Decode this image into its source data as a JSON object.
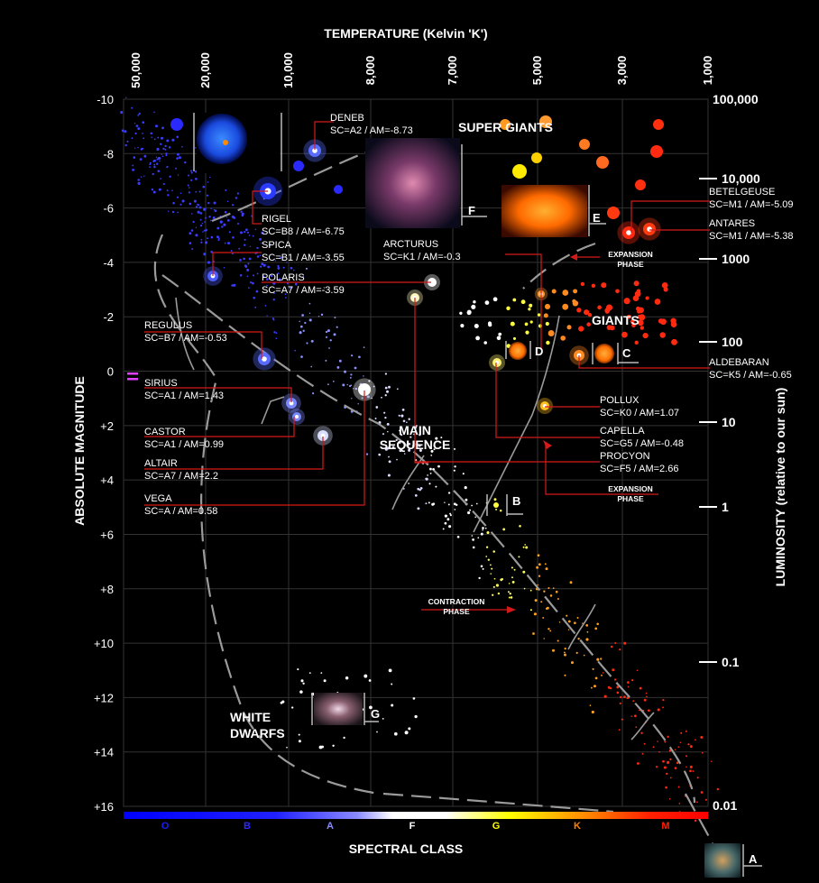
{
  "chart_data": {
    "type": "scatter",
    "title": "TEMPERATURE (Kelvin 'K')",
    "xlabel": "SPECTRAL CLASS",
    "ylabel": "ABSOLUTE MAGNITUDE",
    "y2label": "LUMINOSITY (relative to our sun)",
    "ylim": [
      -10,
      16
    ],
    "temperature_ticks": [
      "50,000",
      "20,000",
      "10,000",
      "8,000",
      "7,000",
      "5,000",
      "3,000",
      "1,000"
    ],
    "magnitude_ticks": [
      "-10",
      "-8",
      "-6",
      "-4",
      "-2",
      "0",
      "+2",
      "+4",
      "+6",
      "+8",
      "+10",
      "+12",
      "+14",
      "+16"
    ],
    "luminosity_ticks": [
      "100,000",
      "10,000",
      "1000",
      "100",
      "10",
      "1",
      "0.1",
      "0.01"
    ],
    "spectral_classes": [
      "O",
      "B",
      "A",
      "F",
      "G",
      "K",
      "M"
    ],
    "regions": {
      "super_giants": "SUPER GIANTS",
      "giants": "GIANTS",
      "main_sequence_1": "MAIN",
      "main_sequence_2": "SEQUENCE",
      "white_dwarfs_1": "WHITE",
      "white_dwarfs_2": "DWARFS"
    },
    "phases": {
      "expansion_1": "EXPANSION",
      "expansion_2": "PHASE",
      "contraction_1": "CONTRACTION",
      "contraction_2": "PHASE"
    },
    "markers": [
      "A",
      "B",
      "C",
      "D",
      "E",
      "F",
      "G"
    ],
    "stars": [
      {
        "name": "DENEB",
        "info": "SC=A2 / AM=-8.73",
        "color": "#5a6cff"
      },
      {
        "name": "RIGEL",
        "info": "SC=B8 / AM=-6.75",
        "color": "#2b3cff"
      },
      {
        "name": "SPICA",
        "info": "SC=B1 / AM=-3.55",
        "color": "#4c5cff"
      },
      {
        "name": "POLARIS",
        "info": "SC=A7 / AM=-3.59",
        "color": "#fff6c0"
      },
      {
        "name": "ARCTURUS",
        "info": "SC=K1 / AM=-0.3",
        "color": "#ff9a30"
      },
      {
        "name": "REGULUS",
        "info": "SC=B7 / AM=-0.53",
        "color": "#5a6cff"
      },
      {
        "name": "SIRIUS",
        "info": "SC=A1 / AM=1.43",
        "color": "#7a88ff"
      },
      {
        "name": "CASTOR",
        "info": "SC=A1 / AM=0.99",
        "color": "#7a88ff"
      },
      {
        "name": "ALTAIR",
        "info": "SC=A7 / AM=2.2",
        "color": "#d8dcff"
      },
      {
        "name": "VEGA",
        "info": "SC=A / AM=0.58",
        "color": "#ffffff"
      },
      {
        "name": "BETELGEUSE",
        "info": "SC=M1 / AM=-5.09",
        "color": "#ff2a10"
      },
      {
        "name": "ANTARES",
        "info": "SC=M1 / AM=-5.38",
        "color": "#ff3a10"
      },
      {
        "name": "ALDEBARAN",
        "info": "SC=K5 / AM=-0.65",
        "color": "#ff8a20"
      },
      {
        "name": "POLLUX",
        "info": "SC=K0 / AM=1.07",
        "color": "#ffc020"
      },
      {
        "name": "CAPELLA",
        "info": "SC=G5 / AM=-0.48",
        "color": "#fff070"
      },
      {
        "name": "PROCYON",
        "info": "SC=F5 / AM=2.66",
        "color": "#ffffff"
      }
    ],
    "colors": {
      "background": "#000000",
      "leader_line": "#d21a1a",
      "track": "#9a9a9a",
      "grid": "#333333"
    },
    "grid": true
  }
}
